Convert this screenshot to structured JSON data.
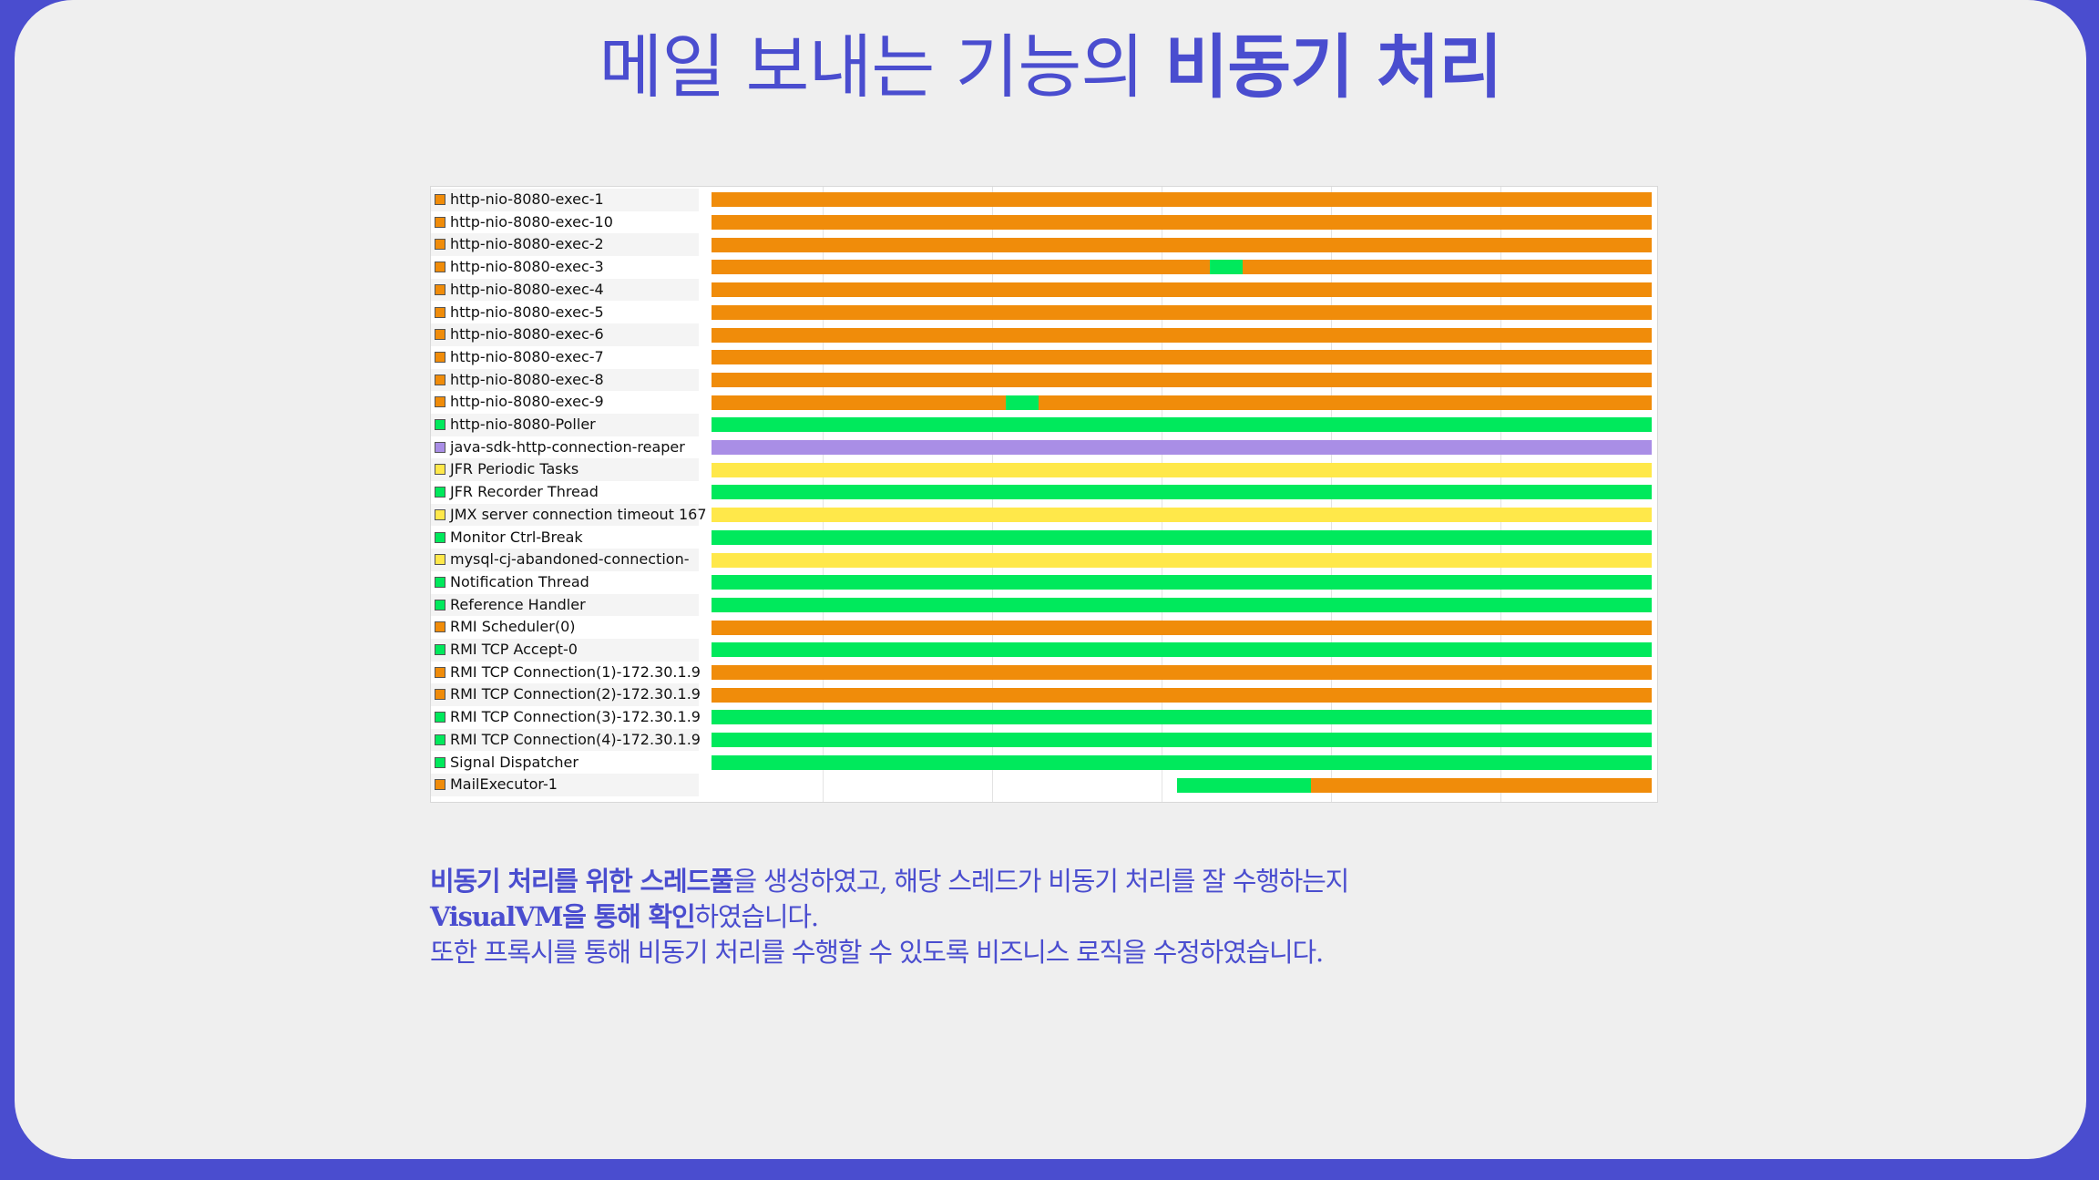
{
  "title": {
    "regular": "메일 보내는 기능의 ",
    "bold": "비동기 처리"
  },
  "colors": {
    "running": "#f08c0a",
    "sleeping": "#00e95c",
    "waiting": "#ffe84a",
    "park": "#a98ee6",
    "accent": "#4a4dcf"
  },
  "threads": [
    {
      "name": "http-nio-8080-exec-1",
      "state": "running",
      "segments": [
        {
          "s": 0,
          "e": 1,
          "c": "running"
        }
      ]
    },
    {
      "name": "http-nio-8080-exec-10",
      "state": "running",
      "segments": [
        {
          "s": 0,
          "e": 1,
          "c": "running"
        }
      ]
    },
    {
      "name": "http-nio-8080-exec-2",
      "state": "running",
      "segments": [
        {
          "s": 0,
          "e": 1,
          "c": "running"
        }
      ]
    },
    {
      "name": "http-nio-8080-exec-3",
      "state": "running",
      "segments": [
        {
          "s": 0,
          "e": 0.53,
          "c": "running"
        },
        {
          "s": 0.53,
          "e": 0.565,
          "c": "sleeping"
        },
        {
          "s": 0.565,
          "e": 1,
          "c": "running"
        }
      ]
    },
    {
      "name": "http-nio-8080-exec-4",
      "state": "running",
      "segments": [
        {
          "s": 0,
          "e": 1,
          "c": "running"
        }
      ]
    },
    {
      "name": "http-nio-8080-exec-5",
      "state": "running",
      "segments": [
        {
          "s": 0,
          "e": 1,
          "c": "running"
        }
      ]
    },
    {
      "name": "http-nio-8080-exec-6",
      "state": "running",
      "segments": [
        {
          "s": 0,
          "e": 1,
          "c": "running"
        }
      ]
    },
    {
      "name": "http-nio-8080-exec-7",
      "state": "running",
      "segments": [
        {
          "s": 0,
          "e": 1,
          "c": "running"
        }
      ]
    },
    {
      "name": "http-nio-8080-exec-8",
      "state": "running",
      "segments": [
        {
          "s": 0,
          "e": 1,
          "c": "running"
        }
      ]
    },
    {
      "name": "http-nio-8080-exec-9",
      "state": "running",
      "segments": [
        {
          "s": 0,
          "e": 0.313,
          "c": "running"
        },
        {
          "s": 0.313,
          "e": 0.348,
          "c": "sleeping"
        },
        {
          "s": 0.348,
          "e": 1,
          "c": "running"
        }
      ]
    },
    {
      "name": "http-nio-8080-Poller",
      "state": "sleeping",
      "segments": [
        {
          "s": 0,
          "e": 1,
          "c": "sleeping"
        }
      ]
    },
    {
      "name": "java-sdk-http-connection-reaper",
      "state": "park",
      "segments": [
        {
          "s": 0,
          "e": 1,
          "c": "park"
        }
      ]
    },
    {
      "name": "JFR Periodic Tasks",
      "state": "waiting",
      "segments": [
        {
          "s": 0,
          "e": 1,
          "c": "waiting"
        }
      ]
    },
    {
      "name": "JFR Recorder Thread",
      "state": "sleeping",
      "segments": [
        {
          "s": 0,
          "e": 1,
          "c": "sleeping"
        }
      ]
    },
    {
      "name": "JMX server connection timeout 167",
      "state": "waiting",
      "segments": [
        {
          "s": 0,
          "e": 1,
          "c": "waiting"
        }
      ]
    },
    {
      "name": "Monitor Ctrl-Break",
      "state": "sleeping",
      "segments": [
        {
          "s": 0,
          "e": 1,
          "c": "sleeping"
        }
      ]
    },
    {
      "name": "mysql-cj-abandoned-connection-",
      "state": "waiting",
      "segments": [
        {
          "s": 0,
          "e": 1,
          "c": "waiting"
        }
      ]
    },
    {
      "name": "Notification Thread",
      "state": "sleeping",
      "segments": [
        {
          "s": 0,
          "e": 1,
          "c": "sleeping"
        }
      ]
    },
    {
      "name": "Reference Handler",
      "state": "sleeping",
      "segments": [
        {
          "s": 0,
          "e": 1,
          "c": "sleeping"
        }
      ]
    },
    {
      "name": "RMI Scheduler(0)",
      "state": "running",
      "segments": [
        {
          "s": 0,
          "e": 1,
          "c": "running"
        }
      ]
    },
    {
      "name": "RMI TCP Accept-0",
      "state": "sleeping",
      "segments": [
        {
          "s": 0,
          "e": 1,
          "c": "sleeping"
        }
      ]
    },
    {
      "name": "RMI TCP Connection(1)-172.30.1.9",
      "state": "running",
      "segments": [
        {
          "s": 0,
          "e": 1,
          "c": "running"
        }
      ]
    },
    {
      "name": "RMI TCP Connection(2)-172.30.1.9",
      "state": "running",
      "segments": [
        {
          "s": 0,
          "e": 1,
          "c": "running"
        }
      ]
    },
    {
      "name": "RMI TCP Connection(3)-172.30.1.9",
      "state": "sleeping",
      "segments": [
        {
          "s": 0,
          "e": 1,
          "c": "sleeping"
        }
      ]
    },
    {
      "name": "RMI TCP Connection(4)-172.30.1.9",
      "state": "sleeping",
      "segments": [
        {
          "s": 0,
          "e": 1,
          "c": "sleeping"
        }
      ]
    },
    {
      "name": "Signal Dispatcher",
      "state": "sleeping",
      "segments": [
        {
          "s": 0,
          "e": 1,
          "c": "sleeping"
        }
      ]
    },
    {
      "name": "MailExecutor-1",
      "state": "running",
      "segments": [
        {
          "s": 0.495,
          "e": 0.638,
          "c": "sleeping"
        },
        {
          "s": 0.638,
          "e": 1,
          "c": "running"
        }
      ]
    }
  ],
  "description": {
    "line1_bold": "비동기 처리를 위한 스레드풀",
    "line1_rest": "을 생성하였고, 해당 스레드가 비동기 처리를 잘 수행하는지",
    "line2_bold": "VisualVM을 통해 확인",
    "line2_rest": "하였습니다.",
    "line3": "또한 프록시를 통해 비동기 처리를 수행할 수 있도록 비즈니스 로직을 수정하였습니다."
  }
}
